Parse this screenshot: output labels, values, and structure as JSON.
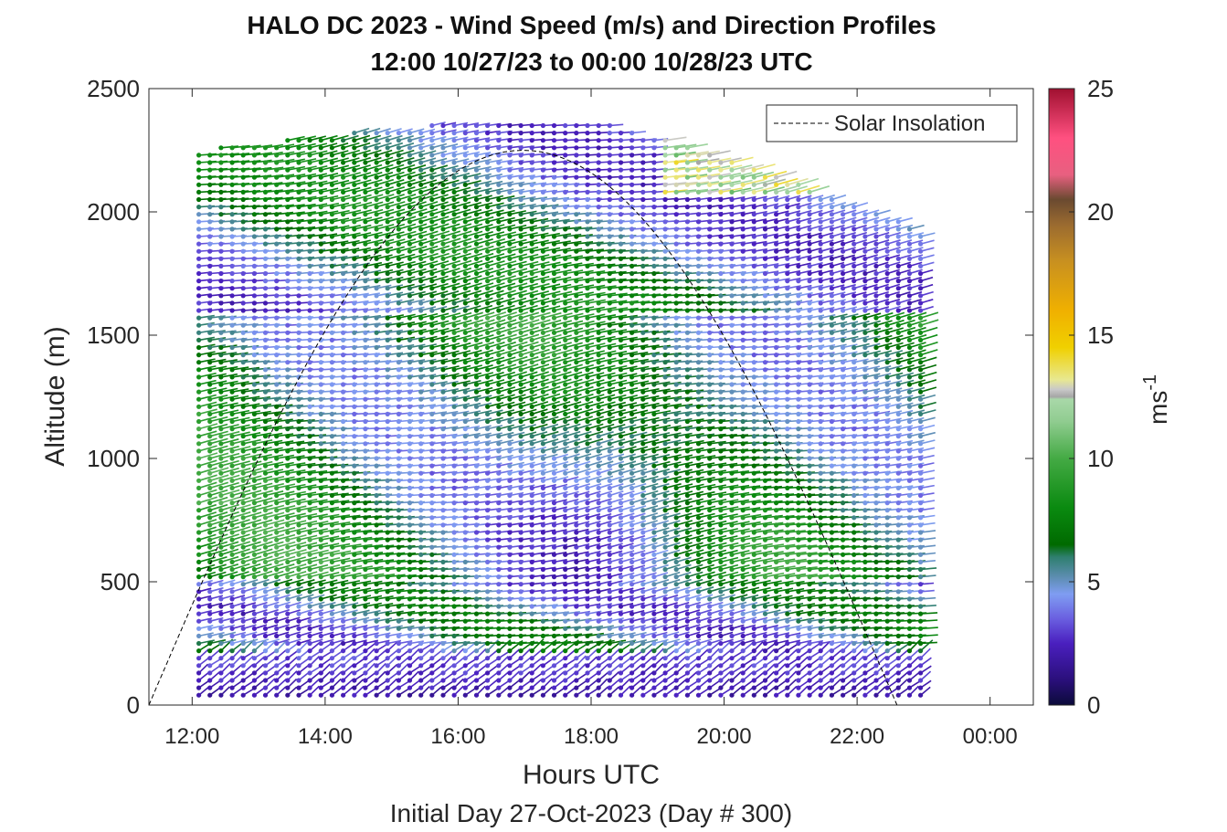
{
  "chart_data": {
    "type": "scatter",
    "title": "HALO DC 2023 - Wind Speed (m/s) and Direction Profiles",
    "subtitle": "12:00 10/27/23 to 00:00 10/28/23  UTC",
    "xlabel": "Hours UTC",
    "xlabel2": "Initial Day 27-Oct-2023 (Day # 300)",
    "ylabel": "Altitude (m)",
    "xlim": [
      11.35,
      24.65
    ],
    "ylim": [
      0,
      2500
    ],
    "x_ticks": [
      {
        "value": 12,
        "label": "12:00"
      },
      {
        "value": 14,
        "label": "14:00"
      },
      {
        "value": 16,
        "label": "16:00"
      },
      {
        "value": 18,
        "label": "18:00"
      },
      {
        "value": 20,
        "label": "20:00"
      },
      {
        "value": 22,
        "label": "22:00"
      },
      {
        "value": 24,
        "label": "00:00"
      }
    ],
    "y_ticks": [
      {
        "value": 0,
        "label": "0"
      },
      {
        "value": 500,
        "label": "500"
      },
      {
        "value": 1000,
        "label": "1000"
      },
      {
        "value": 1500,
        "label": "1500"
      },
      {
        "value": 2000,
        "label": "2000"
      },
      {
        "value": 2500,
        "label": "2500"
      }
    ],
    "legend": {
      "label": "Solar Insolation",
      "placement": "top-right"
    },
    "colorbar": {
      "label": "ms",
      "label_superscript": "-1",
      "lim": [
        0,
        25
      ],
      "ticks": [
        {
          "value": 0,
          "label": "0"
        },
        {
          "value": 5,
          "label": "5"
        },
        {
          "value": 10,
          "label": "10"
        },
        {
          "value": 15,
          "label": "15"
        },
        {
          "value": 20,
          "label": "20"
        },
        {
          "value": 25,
          "label": "25"
        }
      ],
      "colors": [
        [
          0,
          "#0b0b3a"
        ],
        [
          1,
          "#2a0f7a"
        ],
        [
          2.5,
          "#4a1fbf"
        ],
        [
          3.5,
          "#6a5fe0"
        ],
        [
          4.5,
          "#7f9df2"
        ],
        [
          5.2,
          "#5c8db0"
        ],
        [
          6,
          "#2f7f6f"
        ],
        [
          6.5,
          "#006a00"
        ],
        [
          8,
          "#0a8a10"
        ],
        [
          10,
          "#44aa44"
        ],
        [
          11.5,
          "#90cc90"
        ],
        [
          12.4,
          "#a8d8a8"
        ],
        [
          12.5,
          "#a6a6a6"
        ],
        [
          12.8,
          "#c8c8c8"
        ],
        [
          13.2,
          "#e8e890"
        ],
        [
          14.5,
          "#f0d000"
        ],
        [
          16,
          "#f0b000"
        ],
        [
          18,
          "#c89020"
        ],
        [
          19.5,
          "#9a6a30"
        ],
        [
          20.5,
          "#6a4a30"
        ],
        [
          21.5,
          "#e86080"
        ],
        [
          23,
          "#ff5080"
        ],
        [
          25,
          "#a01030"
        ]
      ]
    },
    "solar_insolation_curve": {
      "rise_hour": 11.35,
      "peak_hour": 17.0,
      "set_hour": 22.6,
      "peak_altitude": 2250
    },
    "wind_barbs": {
      "profile_start_hour": 12.1,
      "profile_interval_hours": 0.167,
      "profile_end_hour": 23.0,
      "level_spacing_m": 30,
      "min_altitude_m": 40,
      "speed_range": [
        1,
        17
      ],
      "direction": "mostly westerly / northwesterly"
    }
  }
}
